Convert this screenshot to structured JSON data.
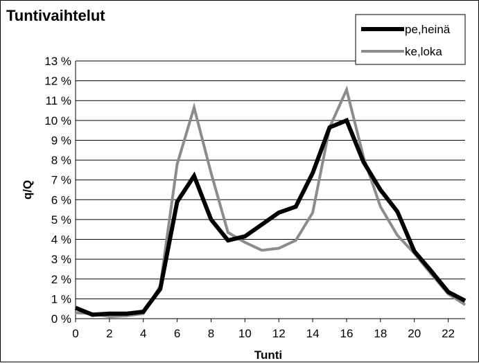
{
  "chart_data": {
    "type": "line",
    "title": "Tuntivaihtelut",
    "xlabel": "Tunti",
    "ylabel": "q/Q",
    "xlim": [
      0,
      23
    ],
    "ylim": [
      0,
      13
    ],
    "x_ticks": [
      "0",
      "2",
      "4",
      "6",
      "8",
      "10",
      "12",
      "14",
      "16",
      "18",
      "20",
      "22"
    ],
    "y_ticks": [
      "0 %",
      "1 %",
      "2 %",
      "3 %",
      "4 %",
      "5 %",
      "6 %",
      "7 %",
      "8 %",
      "9 %",
      "10 %",
      "11 %",
      "12 %",
      "13 %"
    ],
    "grid": "horizontal",
    "legend_position": "top-right",
    "x": [
      0,
      1,
      2,
      3,
      4,
      5,
      6,
      7,
      8,
      9,
      10,
      11,
      12,
      13,
      14,
      15,
      16,
      17,
      18,
      19,
      20,
      21,
      22,
      23
    ],
    "series": [
      {
        "name": "pe,heinä",
        "color": "#000000",
        "values": [
          0.55,
          0.2,
          0.25,
          0.25,
          0.35,
          1.5,
          5.9,
          7.2,
          5.0,
          3.95,
          4.15,
          4.75,
          5.35,
          5.65,
          7.35,
          9.65,
          10.0,
          7.9,
          6.5,
          5.4,
          3.4,
          2.4,
          1.35,
          0.9
        ]
      },
      {
        "name": "ke,loka",
        "color": "#8c8c8c",
        "values": [
          0.3,
          0.25,
          0.1,
          0.15,
          0.25,
          1.65,
          7.8,
          10.65,
          7.35,
          4.35,
          3.85,
          3.45,
          3.55,
          3.95,
          5.35,
          9.65,
          11.55,
          8.15,
          5.65,
          4.2,
          3.3,
          2.25,
          1.25,
          0.7
        ]
      }
    ]
  }
}
